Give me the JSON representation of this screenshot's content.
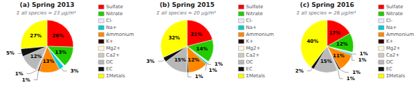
{
  "chart_data": [
    {
      "type": "pie",
      "title": "(a) Spring 2013",
      "subtitle": "Σ all species = 23 μg/m³",
      "categories": [
        "Sulfate",
        "Nitrate",
        "Cl-",
        "Na+",
        "Ammonium",
        "K+",
        "Mg2+",
        "Ca2+",
        "OC",
        "EC",
        "ΣMetals"
      ],
      "values": [
        26,
        13,
        1,
        3,
        13,
        1,
        0,
        1,
        12,
        5,
        27
      ],
      "value_labels": [
        "26%",
        "13%",
        null,
        "3%",
        "13%",
        "1%",
        null,
        "1%",
        "12%",
        "5%",
        "27%"
      ],
      "colors": [
        "#ff0000",
        "#22cc00",
        "#e8e8ff",
        "#00cccc",
        "#ff8800",
        "#2a0800",
        "#fff8e0",
        "#d0c8c0",
        "#b8b8b8",
        "#111111",
        "#ffff00"
      ],
      "data_labels": true,
      "legend": "right"
    },
    {
      "type": "pie",
      "title": "(b) Spring 2015",
      "subtitle": "Σ all species = 20 μg/m³",
      "categories": [
        "Sulfate",
        "Nitrate",
        "Cl-",
        "Na+",
        "Ammonium",
        "K+",
        "Mg2+",
        "Ca2+",
        "OC",
        "EC",
        "ΣMetals"
      ],
      "values": [
        21,
        14,
        1,
        1,
        12,
        1,
        0,
        0,
        15,
        3,
        32
      ],
      "value_labels": [
        "21%",
        "14%",
        "1%",
        "1%",
        "12%",
        "1%",
        null,
        null,
        "15%",
        "3%",
        "32%"
      ],
      "colors": [
        "#ff0000",
        "#22cc00",
        "#e8e8ff",
        "#00cccc",
        "#ff8800",
        "#2a0800",
        "#fff8e0",
        "#d0c8c0",
        "#b8b8b8",
        "#111111",
        "#ffff00"
      ],
      "data_labels": true,
      "legend": "right"
    },
    {
      "type": "pie",
      "title": "(c) Spring 2016",
      "subtitle": "Σ all species = 26 μg/m³",
      "categories": [
        "Sulfate",
        "Nitrate",
        "Cl-",
        "Na+",
        "Ammonium",
        "K+",
        "Mg2+",
        "Ca2+",
        "OC",
        "EC",
        "ΣMetals"
      ],
      "values": [
        17,
        12,
        1,
        1,
        11,
        1,
        0,
        1,
        15,
        2,
        40
      ],
      "value_labels": [
        "17%",
        "12%",
        "1%",
        "1%",
        "11%",
        "1%",
        null,
        "1%",
        "15%",
        "2%",
        "40%"
      ],
      "colors": [
        "#ff0000",
        "#22cc00",
        "#e8e8ff",
        "#00cccc",
        "#ff8800",
        "#2a0800",
        "#fff8e0",
        "#d0c8c0",
        "#b8b8b8",
        "#111111",
        "#ffff00"
      ],
      "data_labels": true,
      "legend": "right"
    }
  ]
}
